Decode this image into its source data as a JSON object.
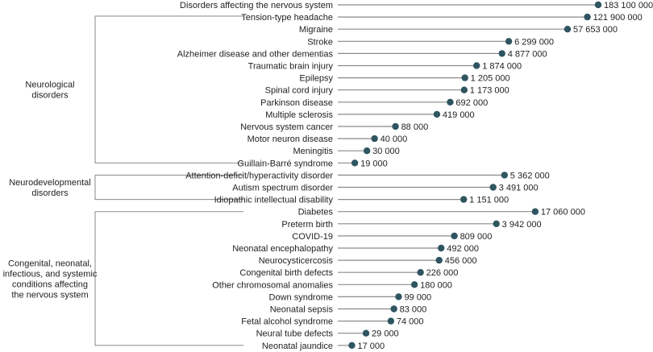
{
  "chart_data": {
    "type": "lollipop",
    "groups": [
      {
        "name_lines": [
          "Neurological",
          "disorders"
        ],
        "items": [
          {
            "label": "Disorders affecting the nervous system",
            "value": 183100000,
            "value_label": "183 100 000"
          },
          {
            "label": "Tension-type headache",
            "value": 121900000,
            "value_label": "121 900 000"
          },
          {
            "label": "Migraine",
            "value": 57653000,
            "value_label": "57 653 000"
          },
          {
            "label": "Stroke",
            "value": 6299000,
            "value_label": "6 299 000"
          },
          {
            "label": "Alzheimer disease and other dementias",
            "value": 4877000,
            "value_label": "4 877 000"
          },
          {
            "label": "Traumatic brain injury",
            "value": 1874000,
            "value_label": "1 874 000"
          },
          {
            "label": "Epilepsy",
            "value": 1205000,
            "value_label": "1 205 000"
          },
          {
            "label": "Spinal cord injury",
            "value": 1173000,
            "value_label": "1 173 000"
          },
          {
            "label": "Parkinson disease",
            "value": 692000,
            "value_label": "692 000"
          },
          {
            "label": "Multiple sclerosis",
            "value": 419000,
            "value_label": "419 000"
          },
          {
            "label": "Nervous system cancer",
            "value": 88000,
            "value_label": "88 000"
          },
          {
            "label": "Motor neuron disease",
            "value": 40000,
            "value_label": "40 000"
          },
          {
            "label": "Meningitis",
            "value": 30000,
            "value_label": "30 000"
          },
          {
            "label": "Guillain-Barré syndrome",
            "value": 19000,
            "value_label": "19 000"
          }
        ]
      },
      {
        "name_lines": [
          "Neurodevelopmental",
          "disorders"
        ],
        "items": [
          {
            "label": "Attention-deficit/hyperactivity disorder",
            "value": 5362000,
            "value_label": "5 362 000"
          },
          {
            "label": "Autism spectrum disorder",
            "value": 3491000,
            "value_label": "3 491 000"
          },
          {
            "label": "Idiopathic intellectual disability",
            "value": 1151000,
            "value_label": "1 151 000"
          }
        ]
      },
      {
        "name_lines": [
          "Congenital, neonatal,",
          "infectious, and systemic",
          "conditions affecting",
          "the nervous system"
        ],
        "items": [
          {
            "label": "Diabetes",
            "value": 17060000,
            "value_label": "17 060 000"
          },
          {
            "label": "Preterm birth",
            "value": 3942000,
            "value_label": "3 942 000"
          },
          {
            "label": "COVID-19",
            "value": 809000,
            "value_label": "809 000"
          },
          {
            "label": "Neonatal encephalopathy",
            "value": 492000,
            "value_label": "492 000"
          },
          {
            "label": "Neurocysticercosis",
            "value": 456000,
            "value_label": "456 000"
          },
          {
            "label": "Congenital birth defects",
            "value": 226000,
            "value_label": "226 000"
          },
          {
            "label": "Other chromosomal anomalies",
            "value": 180000,
            "value_label": "180 000"
          },
          {
            "label": "Down syndrome",
            "value": 99000,
            "value_label": "99 000"
          },
          {
            "label": "Neonatal sepsis",
            "value": 83000,
            "value_label": "83 000"
          },
          {
            "label": "Fetal alcohol syndrome",
            "value": 74000,
            "value_label": "74 000"
          },
          {
            "label": "Neural tube defects",
            "value": 29000,
            "value_label": "29 000"
          },
          {
            "label": "Neonatal jaundice",
            "value": 17000,
            "value_label": "17 000"
          }
        ]
      }
    ],
    "x_scale": "log",
    "xlim": [
      10000,
      183100000
    ],
    "marker_color": "#2e5560",
    "stem_color": "#8a8a8a",
    "grid": false,
    "legend": "none"
  }
}
